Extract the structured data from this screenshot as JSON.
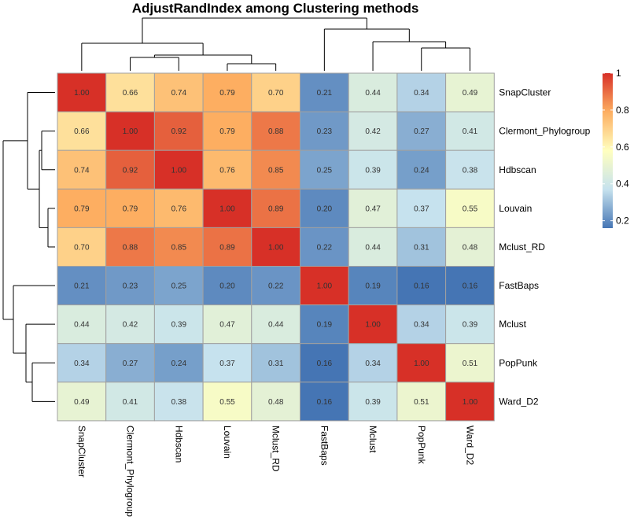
{
  "chart_data": {
    "type": "heatmap",
    "title": "AdjustRandIndex among Clustering methods",
    "labels": [
      "SnapCluster",
      "Clermont_Phylogroup",
      "Hdbscan",
      "Louvain",
      "Mclust_RD",
      "FastBaps",
      "Mclust",
      "PopPunk",
      "Ward_D2"
    ],
    "values": [
      [
        1.0,
        0.66,
        0.74,
        0.79,
        0.7,
        0.21,
        0.44,
        0.34,
        0.49
      ],
      [
        0.66,
        1.0,
        0.92,
        0.79,
        0.88,
        0.23,
        0.42,
        0.27,
        0.41
      ],
      [
        0.74,
        0.92,
        1.0,
        0.76,
        0.85,
        0.25,
        0.39,
        0.24,
        0.38
      ],
      [
        0.79,
        0.79,
        0.76,
        1.0,
        0.89,
        0.2,
        0.47,
        0.37,
        0.55
      ],
      [
        0.7,
        0.88,
        0.85,
        0.89,
        1.0,
        0.22,
        0.44,
        0.31,
        0.48
      ],
      [
        0.21,
        0.23,
        0.25,
        0.2,
        0.22,
        1.0,
        0.19,
        0.16,
        0.16
      ],
      [
        0.44,
        0.42,
        0.39,
        0.47,
        0.44,
        0.19,
        1.0,
        0.34,
        0.39
      ],
      [
        0.34,
        0.27,
        0.24,
        0.37,
        0.31,
        0.16,
        0.34,
        1.0,
        0.51
      ],
      [
        0.49,
        0.41,
        0.38,
        0.55,
        0.48,
        0.16,
        0.39,
        0.51,
        1.0
      ]
    ],
    "value_labels": [
      [
        "1.00",
        "0.66",
        "0.74",
        "0.79",
        "0.70",
        "0.21",
        "0.44",
        "0.34",
        "0.49"
      ],
      [
        "0.66",
        "1.00",
        "0.92",
        "0.79",
        "0.88",
        "0.23",
        "0.42",
        "0.27",
        "0.41"
      ],
      [
        "0.74",
        "0.92",
        "1.00",
        "0.76",
        "0.85",
        "0.25",
        "0.39",
        "0.24",
        "0.38"
      ],
      [
        "0.79",
        "0.79",
        "0.76",
        "1.00",
        "0.89",
        "0.20",
        "0.47",
        "0.37",
        "0.55"
      ],
      [
        "0.70",
        "0.88",
        "0.85",
        "0.89",
        "1.00",
        "0.22",
        "0.44",
        "0.31",
        "0.48"
      ],
      [
        "0.21",
        "0.23",
        "0.25",
        "0.20",
        "0.22",
        "1.00",
        "0.19",
        "0.16",
        "0.16"
      ],
      [
        "0.44",
        "0.42",
        "0.39",
        "0.47",
        "0.44",
        "0.19",
        "1.00",
        "0.34",
        "0.39"
      ],
      [
        "0.34",
        "0.27",
        "0.24",
        "0.37",
        "0.31",
        "0.16",
        "0.34",
        "1.00",
        "0.51"
      ],
      [
        "0.49",
        "0.41",
        "0.38",
        "0.55",
        "0.48",
        "0.16",
        "0.39",
        "0.51",
        "1.00"
      ]
    ],
    "color_scale": {
      "stops": [
        {
          "value": 0.16,
          "color": "#4575b4"
        },
        {
          "value": 0.37,
          "color": "#c6e2ee"
        },
        {
          "value": 0.58,
          "color": "#ffffbf"
        },
        {
          "value": 0.79,
          "color": "#fdae61"
        },
        {
          "value": 1.0,
          "color": "#d73027"
        }
      ],
      "legend_ticks": [
        "1",
        "0.8",
        "0.6",
        "0.4",
        "0.2"
      ],
      "legend_tick_values": [
        1.0,
        0.8,
        0.6,
        0.4,
        0.2
      ],
      "legend_range": [
        0.16,
        1.0
      ]
    },
    "legend_position": "right",
    "cell_border_color": "#a0a0a0",
    "dendrogram": "hierarchical clustering on rows and columns"
  }
}
